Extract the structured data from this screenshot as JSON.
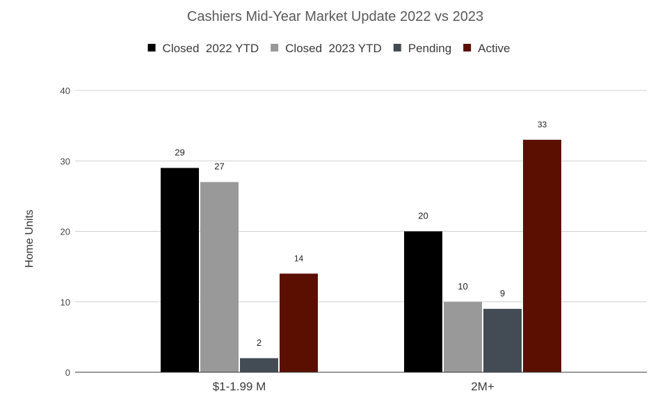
{
  "chart_data": {
    "type": "bar",
    "title": "Cashiers Mid-Year Market Update 2022 vs 2023",
    "xlabel": "",
    "ylabel": "Home Units",
    "ylim": [
      0,
      40
    ],
    "yticks": [
      "0",
      "10",
      "20",
      "30",
      "40"
    ],
    "grid": true,
    "legend_position": "top",
    "categories": [
      "$1-1.99 M",
      "2M+"
    ],
    "series": [
      {
        "name": "Closed  2022 YTD",
        "color": "#000000",
        "values": [
          29,
          20
        ]
      },
      {
        "name": "Closed  2023 YTD",
        "color": "#999999",
        "values": [
          27,
          10
        ]
      },
      {
        "name": "Pending",
        "color": "#434c54",
        "values": [
          2,
          9
        ]
      },
      {
        "name": "Active",
        "color": "#5b0f00",
        "values": [
          14,
          33
        ]
      }
    ]
  }
}
